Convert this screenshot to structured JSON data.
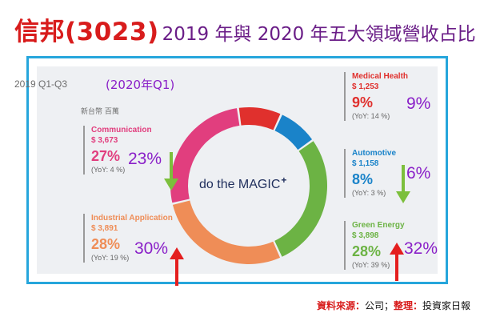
{
  "title": {
    "company": "信邦(3023)",
    "subtitle": "2019 年與 2020 年五大領域營收占比"
  },
  "panel": {
    "period": "2019 Q1-Q3",
    "period_2020": "(2020年Q1)",
    "unit": "新台幣 百萬",
    "center_label": "do the MAGIC",
    "center_mark": "+"
  },
  "source": {
    "label1": "資料來源：",
    "value1": "公司；",
    "label2": "整理：",
    "value2": "投資家日報"
  },
  "colors": {
    "medical": "#e0302d",
    "automotive": "#1a83c9",
    "green": "#6cb344",
    "industrial": "#ef8d57",
    "communication": "#e13e7e",
    "up_arrow": "#e41e1e",
    "down_arrow": "#7cbf3c",
    "q1_text": "#8a20c8"
  },
  "chart_data": {
    "type": "pie",
    "donut": true,
    "title": "2019 年與 2020 年五大領域營收占比",
    "unit": "新台幣 百萬",
    "series": [
      {
        "name": "Medical Health",
        "value_text": "$ 1,253",
        "value": 1253,
        "pct": "9%",
        "yoy": "(YoY: 14 %)",
        "q1_2020": "9%",
        "trend": "none"
      },
      {
        "name": "Automotive",
        "value_text": "$ 1,158",
        "value": 1158,
        "pct": "8%",
        "yoy": "(YoY: 3 %)",
        "q1_2020": "6%",
        "trend": "down"
      },
      {
        "name": "Green Energy",
        "value_text": "$ 3,898",
        "value": 3898,
        "pct": "28%",
        "yoy": "(YoY: 39 %)",
        "q1_2020": "32%",
        "trend": "up"
      },
      {
        "name": "Industrial Application",
        "value_text": "$ 3,891",
        "value": 3891,
        "pct": "28%",
        "yoy": "(YoY: 19 %)",
        "q1_2020": "30%",
        "trend": "up"
      },
      {
        "name": "Communication",
        "value_text": "$ 3,673",
        "value": 3673,
        "pct": "27%",
        "yoy": "(YoY: 4 %)",
        "q1_2020": "23%",
        "trend": "down"
      }
    ]
  }
}
